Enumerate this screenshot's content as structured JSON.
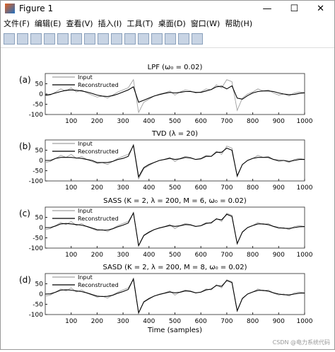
{
  "window": {
    "title": "Figure 1",
    "menu": [
      "文件(F)",
      "编辑(E)",
      "查看(V)",
      "插入(I)",
      "工具(T)",
      "桌面(D)",
      "窗口(W)",
      "帮助(H)"
    ],
    "watermark": "CSDN @电力系统代码"
  },
  "chart_data": [
    {
      "type": "line",
      "panel_label": "(a)",
      "title": "LPF (ω₀ = 0.02)",
      "xlim": [
        0,
        1000
      ],
      "ylim": [
        -100,
        100
      ],
      "xticks": [
        100,
        200,
        300,
        400,
        500,
        600,
        700,
        800,
        900,
        1000
      ],
      "yticks": [
        -100,
        -50,
        0,
        50
      ],
      "legend": "upper-left",
      "x": [
        0,
        20,
        40,
        60,
        80,
        100,
        120,
        140,
        160,
        180,
        200,
        220,
        240,
        260,
        280,
        300,
        320,
        340,
        360,
        380,
        400,
        420,
        440,
        460,
        480,
        500,
        520,
        540,
        560,
        580,
        600,
        620,
        640,
        660,
        680,
        700,
        720,
        740,
        760,
        780,
        800,
        820,
        840,
        860,
        880,
        900,
        920,
        940,
        960,
        980,
        1000
      ],
      "series": [
        {
          "name": "Input",
          "color": "#a0a0a0",
          "values": [
            -10,
            -5,
            10,
            25,
            15,
            30,
            10,
            20,
            5,
            -5,
            -15,
            -10,
            -20,
            -5,
            10,
            20,
            30,
            70,
            -90,
            -40,
            -25,
            -10,
            0,
            5,
            15,
            -5,
            10,
            20,
            15,
            5,
            10,
            25,
            20,
            45,
            30,
            70,
            60,
            -80,
            -20,
            0,
            10,
            25,
            15,
            20,
            5,
            -5,
            0,
            -10,
            5,
            10,
            5
          ]
        },
        {
          "name": "Reconstructed",
          "color": "#000000",
          "values": [
            -5,
            -2,
            5,
            12,
            18,
            20,
            18,
            15,
            10,
            3,
            -5,
            -10,
            -12,
            -8,
            0,
            10,
            20,
            35,
            -40,
            -30,
            -20,
            -10,
            -3,
            3,
            8,
            5,
            8,
            12,
            12,
            8,
            8,
            15,
            22,
            35,
            38,
            25,
            40,
            -20,
            -25,
            -8,
            5,
            12,
            15,
            15,
            12,
            5,
            0,
            -3,
            -2,
            3,
            6
          ]
        }
      ]
    },
    {
      "type": "line",
      "panel_label": "(b)",
      "title": "TVD (λ = 20)",
      "xlim": [
        0,
        1000
      ],
      "ylim": [
        -100,
        100
      ],
      "xticks": [
        100,
        200,
        300,
        400,
        500,
        600,
        700,
        800,
        900,
        1000
      ],
      "yticks": [
        -100,
        -50,
        0,
        50
      ],
      "legend": "upper-left",
      "x": [
        0,
        20,
        40,
        60,
        80,
        100,
        120,
        140,
        160,
        180,
        200,
        220,
        240,
        260,
        280,
        300,
        320,
        340,
        360,
        380,
        400,
        420,
        440,
        460,
        480,
        500,
        520,
        540,
        560,
        580,
        600,
        620,
        640,
        660,
        680,
        700,
        720,
        740,
        760,
        780,
        800,
        820,
        840,
        860,
        880,
        900,
        920,
        940,
        960,
        980,
        1000
      ],
      "series": [
        {
          "name": "Input",
          "color": "#a0a0a0",
          "values": [
            -10,
            -5,
            10,
            25,
            15,
            30,
            10,
            20,
            5,
            -5,
            -15,
            -10,
            -20,
            -5,
            10,
            20,
            30,
            70,
            -90,
            -40,
            -25,
            -10,
            0,
            5,
            15,
            -5,
            10,
            20,
            15,
            5,
            10,
            25,
            20,
            45,
            30,
            70,
            60,
            -80,
            -20,
            0,
            10,
            25,
            15,
            20,
            5,
            -5,
            0,
            -10,
            5,
            10,
            5
          ]
        },
        {
          "name": "Reconstructed",
          "color": "#000000",
          "values": [
            0,
            0,
            10,
            15,
            15,
            15,
            12,
            10,
            5,
            0,
            -10,
            -10,
            -10,
            -5,
            5,
            10,
            20,
            75,
            -80,
            -35,
            -20,
            -10,
            0,
            5,
            10,
            5,
            8,
            15,
            12,
            5,
            8,
            20,
            20,
            40,
            40,
            60,
            50,
            -75,
            -20,
            0,
            10,
            15,
            15,
            15,
            5,
            0,
            0,
            -5,
            0,
            5,
            5
          ]
        }
      ]
    },
    {
      "type": "line",
      "panel_label": "(c)",
      "title": "SASS (K = 2, λ = 200, M = 6, ω₀ = 0.02)",
      "xlim": [
        0,
        1000
      ],
      "ylim": [
        -100,
        100
      ],
      "xticks": [
        100,
        200,
        300,
        400,
        500,
        600,
        700,
        800,
        900,
        1000
      ],
      "yticks": [
        -100,
        -50,
        0,
        50
      ],
      "legend": "upper-left",
      "x": [
        0,
        20,
        40,
        60,
        80,
        100,
        120,
        140,
        160,
        180,
        200,
        220,
        240,
        260,
        280,
        300,
        320,
        340,
        360,
        380,
        400,
        420,
        440,
        460,
        480,
        500,
        520,
        540,
        560,
        580,
        600,
        620,
        640,
        660,
        680,
        700,
        720,
        740,
        760,
        780,
        800,
        820,
        840,
        860,
        880,
        900,
        920,
        940,
        960,
        980,
        1000
      ],
      "series": [
        {
          "name": "Input",
          "color": "#a0a0a0",
          "values": [
            -10,
            -5,
            10,
            25,
            15,
            30,
            10,
            20,
            5,
            -5,
            -15,
            -10,
            -20,
            -5,
            10,
            20,
            30,
            70,
            -90,
            -40,
            -25,
            -10,
            0,
            5,
            15,
            -5,
            10,
            20,
            15,
            5,
            10,
            25,
            20,
            45,
            30,
            70,
            60,
            -80,
            -20,
            0,
            10,
            25,
            15,
            20,
            5,
            -5,
            0,
            -10,
            5,
            10,
            5
          ]
        },
        {
          "name": "Reconstructed",
          "color": "#000000",
          "values": [
            0,
            0,
            8,
            18,
            20,
            18,
            15,
            12,
            6,
            -2,
            -10,
            -12,
            -12,
            -6,
            4,
            12,
            22,
            72,
            -88,
            -38,
            -22,
            -10,
            -2,
            4,
            10,
            6,
            9,
            15,
            13,
            6,
            9,
            20,
            24,
            42,
            38,
            65,
            55,
            -78,
            -22,
            0,
            10,
            18,
            18,
            14,
            6,
            0,
            -3,
            -4,
            0,
            4,
            5
          ]
        }
      ]
    },
    {
      "type": "line",
      "panel_label": "(d)",
      "title": "SASD (K = 2, λ = 200, M = 8, ω₀ = 0.02)",
      "xlabel": "Time (samples)",
      "xlim": [
        0,
        1000
      ],
      "ylim": [
        -100,
        100
      ],
      "xticks": [
        100,
        200,
        300,
        400,
        500,
        600,
        700,
        800,
        900,
        1000
      ],
      "yticks": [
        -100,
        -50,
        0,
        50
      ],
      "legend": "upper-left",
      "x": [
        0,
        20,
        40,
        60,
        80,
        100,
        120,
        140,
        160,
        180,
        200,
        220,
        240,
        260,
        280,
        300,
        320,
        340,
        360,
        380,
        400,
        420,
        440,
        460,
        480,
        500,
        520,
        540,
        560,
        580,
        600,
        620,
        640,
        660,
        680,
        700,
        720,
        740,
        760,
        780,
        800,
        820,
        840,
        860,
        880,
        900,
        920,
        940,
        960,
        980,
        1000
      ],
      "series": [
        {
          "name": "Input",
          "color": "#a0a0a0",
          "values": [
            -10,
            -5,
            10,
            25,
            15,
            30,
            10,
            20,
            5,
            -5,
            -15,
            -10,
            -20,
            -5,
            10,
            20,
            30,
            70,
            -90,
            -40,
            -25,
            -10,
            0,
            5,
            15,
            -5,
            10,
            20,
            15,
            5,
            10,
            25,
            20,
            45,
            30,
            70,
            60,
            -80,
            -20,
            0,
            10,
            25,
            15,
            20,
            5,
            -5,
            0,
            -10,
            5,
            10,
            5
          ]
        },
        {
          "name": "Reconstructed",
          "color": "#000000",
          "values": [
            0,
            1,
            9,
            19,
            21,
            19,
            15,
            12,
            6,
            -2,
            -10,
            -12,
            -11,
            -6,
            4,
            12,
            22,
            74,
            -92,
            -38,
            -22,
            -10,
            -2,
            4,
            10,
            6,
            9,
            15,
            13,
            6,
            9,
            20,
            24,
            42,
            38,
            66,
            56,
            -82,
            -22,
            0,
            10,
            18,
            18,
            14,
            6,
            0,
            -3,
            -4,
            0,
            4,
            5
          ]
        }
      ]
    }
  ]
}
